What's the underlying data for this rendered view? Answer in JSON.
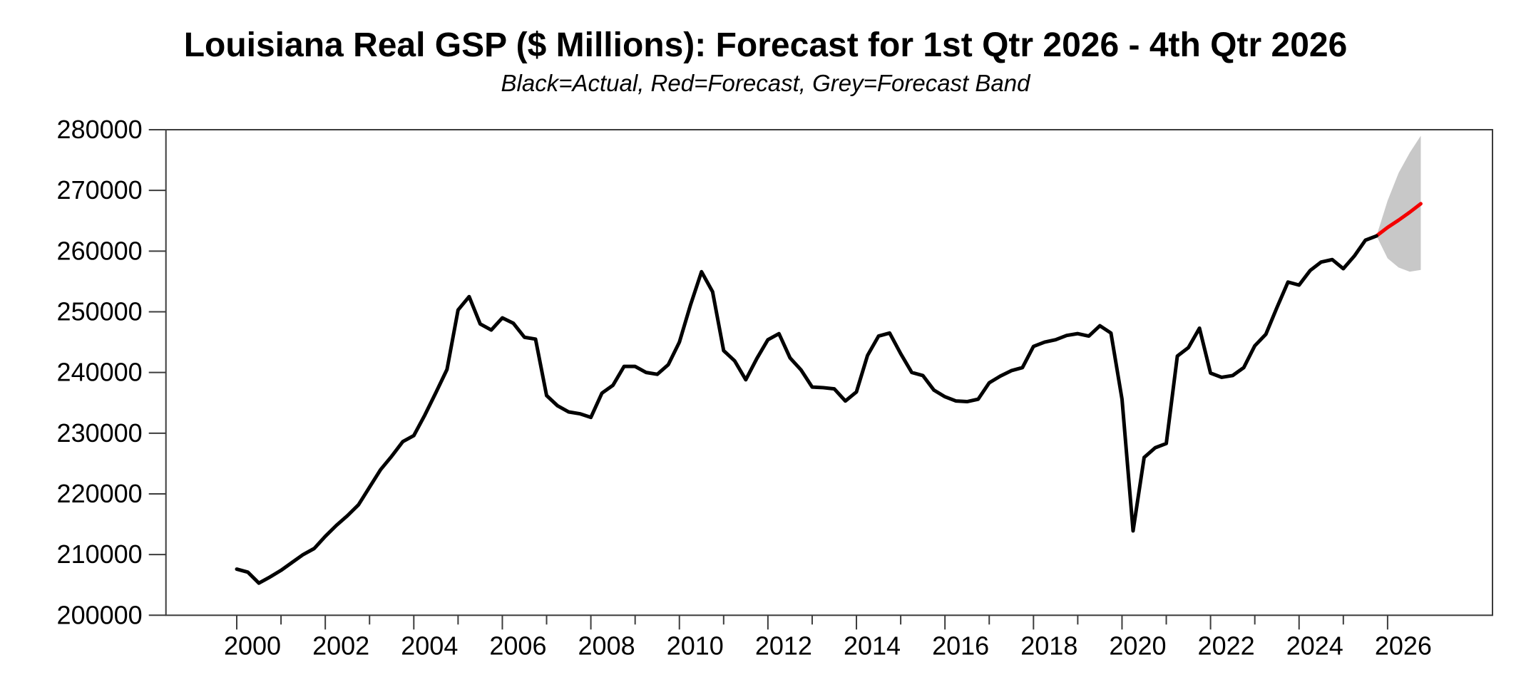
{
  "header": {
    "title": "Louisiana Real GSP ($ Millions): Forecast for 1st Qtr 2026 - 4th Qtr 2026",
    "subtitle": "Black=Actual, Red=Forecast, Grey=Forecast Band"
  },
  "chart_data": {
    "type": "line",
    "title": "Louisiana Real GSP ($ Millions): Forecast for 1st Qtr 2026 - 4th Qtr 2026",
    "subtitle": "Black=Actual, Red=Forecast, Grey=Forecast Band",
    "legend_note": "Black=Actual, Red=Forecast, Grey=Forecast Band",
    "frequency": "quarterly",
    "x_axis": {
      "domain": [
        1998.4,
        2028.37
      ],
      "tick_years": [
        2000,
        2001,
        2002,
        2003,
        2004,
        2005,
        2006,
        2007,
        2008,
        2009,
        2010,
        2011,
        2012,
        2013,
        2014,
        2015,
        2016,
        2017,
        2018,
        2019,
        2020,
        2021,
        2022,
        2023,
        2024,
        2025,
        2026
      ],
      "label_years": [
        2000,
        2002,
        2004,
        2006,
        2008,
        2010,
        2012,
        2014,
        2016,
        2018,
        2020,
        2022,
        2024,
        2026
      ]
    },
    "y_axis": {
      "domain": [
        200000,
        280000
      ],
      "ticks": [
        200000,
        210000,
        220000,
        230000,
        240000,
        250000,
        260000,
        270000,
        280000
      ]
    },
    "colors": {
      "actual": "#000000",
      "forecast": "#f40000",
      "band": "#c8c8c8",
      "axis": "#3c3c3c"
    },
    "series": [
      {
        "name": "Actual",
        "role": "actual",
        "start": 2000.0,
        "step": 0.25,
        "values": [
          207600,
          207100,
          205300,
          206300,
          207400,
          208700,
          210000,
          211000,
          213000,
          214800,
          216400,
          218200,
          221100,
          224000,
          226200,
          228600,
          229600,
          233000,
          236700,
          240500,
          250300,
          252500,
          248000,
          247000,
          249000,
          248100,
          245800,
          245500,
          236200,
          234500,
          233500,
          233200,
          232600,
          236600,
          237900,
          241000,
          241000,
          240000,
          239700,
          241300,
          245000,
          251100,
          256600,
          253300,
          243600,
          241900,
          238800,
          242300,
          245400,
          246400,
          242400,
          240400,
          237600,
          237500,
          237300,
          235300,
          236800,
          242800,
          246000,
          246500,
          243100,
          240000,
          239500,
          237100,
          236000,
          235300,
          235200,
          235600,
          238300,
          239400,
          240300,
          240800,
          244300,
          245000,
          245400,
          246100,
          246400,
          246000,
          247700,
          246500,
          235600,
          213900,
          226000,
          227600,
          228300,
          242700,
          244100,
          247300,
          239900,
          239200,
          239500,
          240800,
          244400,
          246300,
          250700,
          254900,
          254400,
          256800,
          258200,
          258600,
          257100,
          259200,
          261800,
          262500
        ]
      },
      {
        "name": "Forecast",
        "role": "forecast",
        "start": 2025.75,
        "step": 0.25,
        "values": [
          262500,
          263900,
          265100,
          266400,
          267800
        ]
      }
    ],
    "band": {
      "name": "Forecast Band",
      "start": 2025.75,
      "step": 0.25,
      "upper": [
        262500,
        268300,
        272900,
        276200,
        279000
      ],
      "lower": [
        262500,
        258800,
        257300,
        256600,
        256900
      ]
    }
  }
}
